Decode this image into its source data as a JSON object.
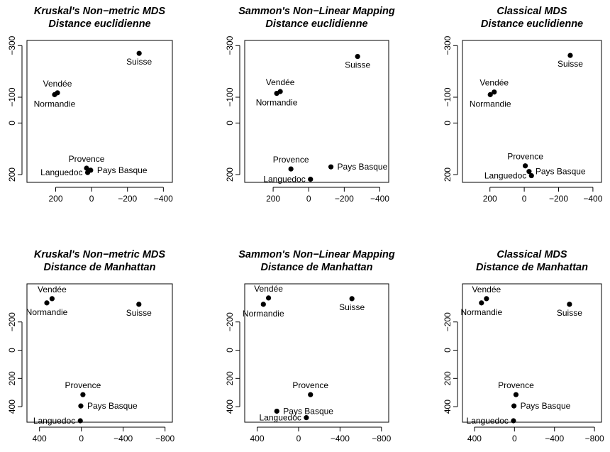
{
  "chart_data": [
    {
      "type": "scatter",
      "title": "Kruskal's Non−metric MDS",
      "subtitle": "Distance euclidienne",
      "xlim": [
        360,
        -450
      ],
      "ylim": [
        230,
        -320
      ],
      "xticks": [
        200,
        0,
        -200,
        -400
      ],
      "xtick_labels": [
        "200",
        "0",
        "−200",
        "−400"
      ],
      "yticks": [
        -300,
        -100,
        0,
        200
      ],
      "ytick_labels": [
        "−300",
        "−100",
        "0",
        "200"
      ],
      "points": [
        {
          "label": "Suisse",
          "x": -265,
          "y": -270
        },
        {
          "label": "Vendée",
          "x": 190,
          "y": -117
        },
        {
          "label": "Normandie",
          "x": 206,
          "y": -110
        },
        {
          "label": "Provence",
          "x": 28,
          "y": 175
        },
        {
          "label": "Pays Basque",
          "x": 5,
          "y": 183
        },
        {
          "label": "Languedoc",
          "x": 22,
          "y": 192
        }
      ]
    },
    {
      "type": "scatter",
      "title": "Sammon's Non−Linear Mapping",
      "subtitle": "Distance euclidienne",
      "xlim": [
        360,
        -450
      ],
      "ylim": [
        230,
        -320
      ],
      "xticks": [
        200,
        0,
        -200,
        -400
      ],
      "xtick_labels": [
        "200",
        "0",
        "−200",
        "−400"
      ],
      "yticks": [
        -300,
        -100,
        0,
        200
      ],
      "ytick_labels": [
        "−300",
        "−100",
        "0",
        "200"
      ],
      "points": [
        {
          "label": "Suisse",
          "x": -275,
          "y": -258
        },
        {
          "label": "Vendée",
          "x": 160,
          "y": -122
        },
        {
          "label": "Normandie",
          "x": 180,
          "y": -115
        },
        {
          "label": "Provence",
          "x": 100,
          "y": 178
        },
        {
          "label": "Pays Basque",
          "x": -125,
          "y": 170
        },
        {
          "label": "Languedoc",
          "x": -10,
          "y": 218
        }
      ]
    },
    {
      "type": "scatter",
      "title": "Classical MDS",
      "subtitle": "Distance euclidienne",
      "xlim": [
        360,
        -450
      ],
      "ylim": [
        230,
        -320
      ],
      "xticks": [
        200,
        0,
        -200,
        -400
      ],
      "xtick_labels": [
        "200",
        "0",
        "−200",
        "−400"
      ],
      "yticks": [
        -300,
        -100,
        0,
        200
      ],
      "ytick_labels": [
        "−300",
        "−100",
        "0",
        "200"
      ],
      "points": [
        {
          "label": "Suisse",
          "x": -268,
          "y": -262
        },
        {
          "label": "Vendée",
          "x": 175,
          "y": -120
        },
        {
          "label": "Normandie",
          "x": 198,
          "y": -110
        },
        {
          "label": "Provence",
          "x": -6,
          "y": 166
        },
        {
          "label": "Pays Basque",
          "x": -28,
          "y": 188
        },
        {
          "label": "Languedoc",
          "x": -42,
          "y": 204
        }
      ]
    },
    {
      "type": "scatter",
      "title": "Kruskal's Non−metric MDS",
      "subtitle": "Distance de Manhattan",
      "xlim": [
        520,
        -870
      ],
      "ylim": [
        510,
        -470
      ],
      "xticks": [
        400,
        0,
        -400,
        -800
      ],
      "xtick_labels": [
        "400",
        "0",
        "−400",
        "−800"
      ],
      "yticks": [
        -200,
        0,
        200,
        400
      ],
      "ytick_labels": [
        "−200",
        "0",
        "200",
        "400"
      ],
      "points": [
        {
          "label": "Vendée",
          "x": 280,
          "y": -365
        },
        {
          "label": "Normandie",
          "x": 330,
          "y": -335
        },
        {
          "label": "Suisse",
          "x": -550,
          "y": -325
        },
        {
          "label": "Provence",
          "x": -15,
          "y": 315
        },
        {
          "label": "Pays Basque",
          "x": 5,
          "y": 395
        },
        {
          "label": "Languedoc",
          "x": 10,
          "y": 500
        }
      ]
    },
    {
      "type": "scatter",
      "title": "Sammon's Non−Linear Mapping",
      "subtitle": "Distance de Manhattan",
      "xlim": [
        520,
        -870
      ],
      "ylim": [
        510,
        -470
      ],
      "xticks": [
        400,
        0,
        -400,
        -800
      ],
      "xtick_labels": [
        "400",
        "0",
        "−400",
        "−800"
      ],
      "yticks": [
        -200,
        0,
        200,
        400
      ],
      "ytick_labels": [
        "−200",
        "0",
        "200",
        "400"
      ],
      "points": [
        {
          "label": "Vendée",
          "x": 290,
          "y": -370
        },
        {
          "label": "Normandie",
          "x": 340,
          "y": -325
        },
        {
          "label": "Suisse",
          "x": -515,
          "y": -365
        },
        {
          "label": "Provence",
          "x": -115,
          "y": 315
        },
        {
          "label": "Pays Basque",
          "x": 210,
          "y": 432
        },
        {
          "label": "Languedoc",
          "x": -75,
          "y": 478
        }
      ]
    },
    {
      "type": "scatter",
      "title": "Classical MDS",
      "subtitle": "Distance de Manhattan",
      "xlim": [
        520,
        -870
      ],
      "ylim": [
        510,
        -470
      ],
      "xticks": [
        400,
        0,
        -400,
        -800
      ],
      "xtick_labels": [
        "400",
        "0",
        "−400",
        "−800"
      ],
      "yticks": [
        -200,
        0,
        200,
        400
      ],
      "ytick_labels": [
        "−200",
        "0",
        "200",
        "400"
      ],
      "points": [
        {
          "label": "Vendée",
          "x": 280,
          "y": -365
        },
        {
          "label": "Normandie",
          "x": 330,
          "y": -335
        },
        {
          "label": "Suisse",
          "x": -550,
          "y": -325
        },
        {
          "label": "Provence",
          "x": -15,
          "y": 315
        },
        {
          "label": "Pays Basque",
          "x": 5,
          "y": 395
        },
        {
          "label": "Languedoc",
          "x": 10,
          "y": 500
        }
      ]
    }
  ]
}
